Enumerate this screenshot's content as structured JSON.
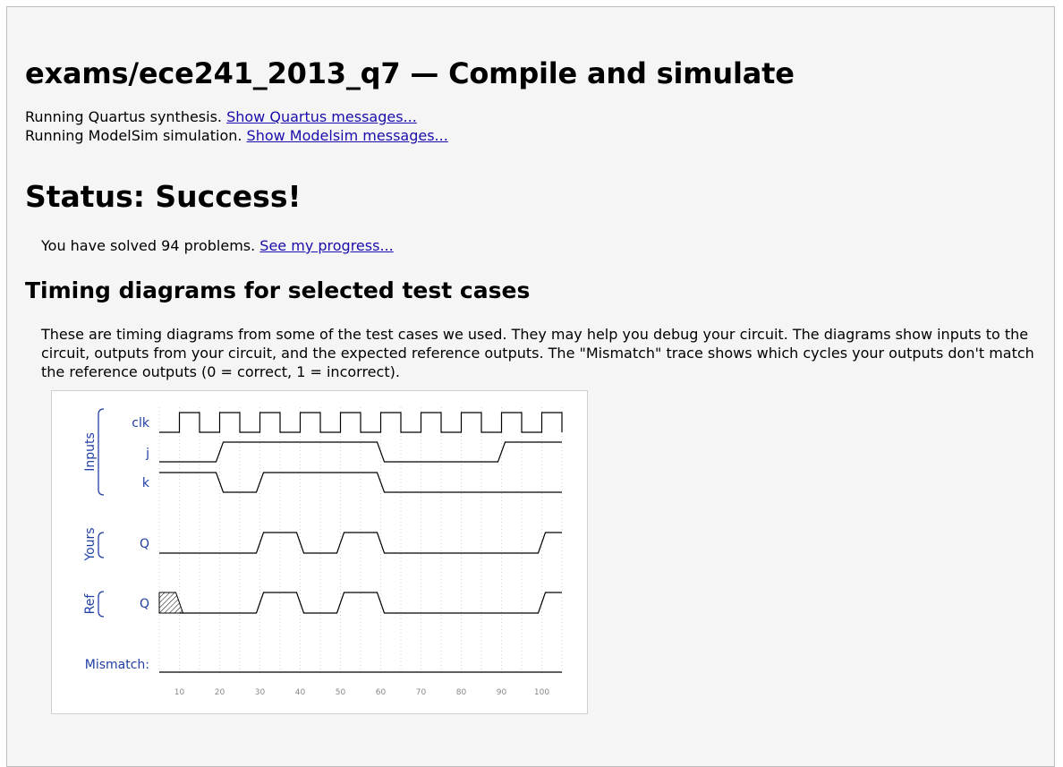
{
  "page": {
    "title": "exams/ece241_2013_q7 — Compile and simulate",
    "messages": [
      {
        "text": "Running Quartus synthesis. ",
        "link": "Show Quartus messages..."
      },
      {
        "text": "Running ModelSim simulation. ",
        "link": "Show Modelsim messages..."
      }
    ],
    "status": "Status: Success!",
    "solved_text": "You have solved 94 problems. ",
    "solved_link": "See my progress...",
    "section_title": "Timing diagrams for selected test cases",
    "description": "These are timing diagrams from some of the test cases we used. They may help you debug your circuit. The diagrams show inputs to the circuit, outputs from your circuit, and the expected reference outputs. The \"Mismatch\" trace shows which cycles your outputs don't match the reference outputs (0 = correct, 1 = incorrect)."
  },
  "colors": {
    "label_blue": "#1f3fa3",
    "link": "#1a0dab",
    "trace": "#000000",
    "grid": "#d0d0d0"
  },
  "timing": {
    "groups": [
      {
        "name": "Inputs",
        "signals": [
          "clk",
          "j",
          "k"
        ]
      },
      {
        "name": "Yours",
        "signals": [
          "Q"
        ]
      },
      {
        "name": "Ref",
        "signals": [
          "Q"
        ]
      }
    ],
    "mismatch_label": "Mismatch:",
    "time_range": [
      5,
      105
    ],
    "time_ticks": [
      10,
      20,
      30,
      40,
      50,
      60,
      70,
      80,
      90,
      100
    ],
    "signals": [
      {
        "id": "clk",
        "label": "clk",
        "group": "Inputs",
        "clock": true,
        "high_from": 10,
        "period": 10
      },
      {
        "id": "j",
        "label": "j",
        "group": "Inputs",
        "transitions": [
          [
            5,
            0
          ],
          [
            20,
            1
          ],
          [
            60,
            0
          ],
          [
            90,
            1
          ]
        ]
      },
      {
        "id": "k",
        "label": "k",
        "group": "Inputs",
        "transitions": [
          [
            5,
            1
          ],
          [
            20,
            0
          ],
          [
            30,
            1
          ],
          [
            60,
            0
          ]
        ]
      },
      {
        "id": "yours_q",
        "label": "Q",
        "group": "Yours",
        "transitions": [
          [
            5,
            0
          ],
          [
            30,
            1
          ],
          [
            40,
            0
          ],
          [
            50,
            1
          ],
          [
            60,
            0
          ],
          [
            100,
            1
          ]
        ]
      },
      {
        "id": "ref_q",
        "label": "Q",
        "group": "Ref",
        "unknown_until": 10,
        "transitions": [
          [
            10,
            0
          ],
          [
            30,
            1
          ],
          [
            40,
            0
          ],
          [
            50,
            1
          ],
          [
            60,
            0
          ],
          [
            100,
            1
          ]
        ]
      },
      {
        "id": "mismatch",
        "label": "Mismatch:",
        "group": "",
        "transitions": [
          [
            5,
            0
          ]
        ]
      }
    ]
  }
}
